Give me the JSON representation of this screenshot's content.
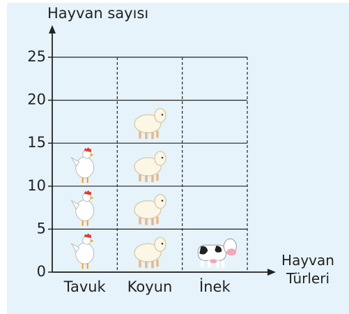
{
  "chart_data": {
    "type": "pictograph",
    "ylabel": "Hayvan sayısı",
    "xlabel": "Hayvan Türleri",
    "categories": [
      "Tavuk",
      "Koyun",
      "İnek"
    ],
    "values": [
      15,
      20,
      5
    ],
    "ylim": [
      0,
      25
    ],
    "yticks": [
      0,
      5,
      10,
      15,
      20,
      25
    ],
    "grid": true
  }
}
